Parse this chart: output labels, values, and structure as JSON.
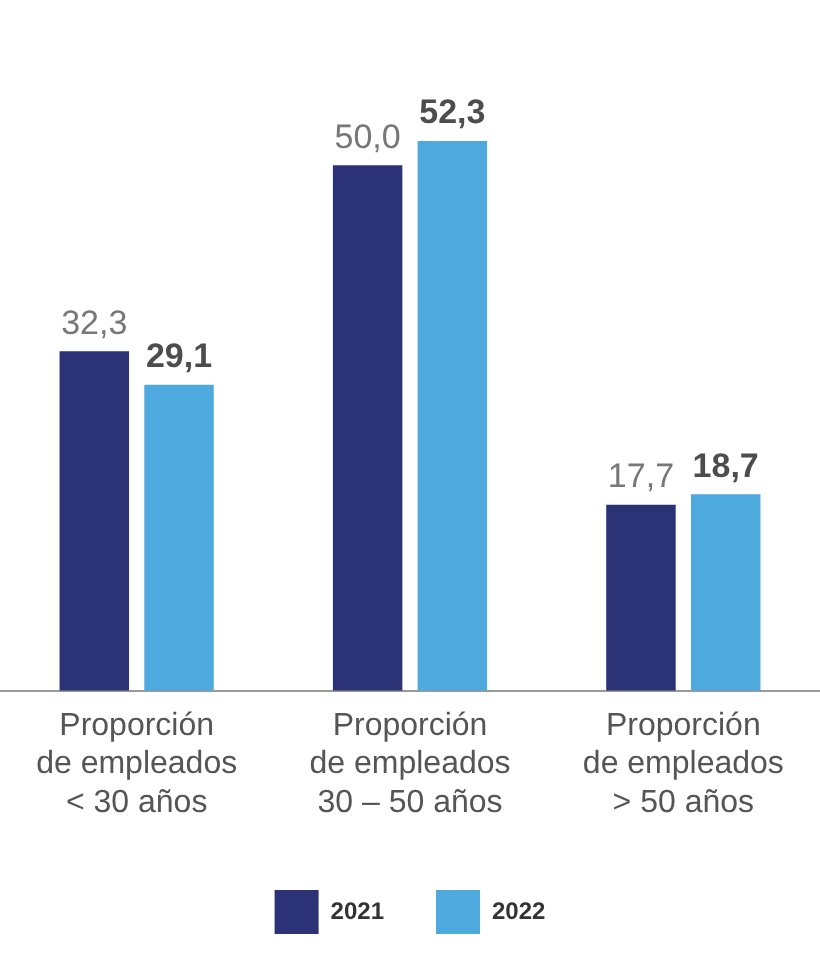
{
  "chart_data": {
    "type": "bar",
    "categories": [
      "Proporción de empleados < 30 años",
      "Proporción de empleados 30 – 50 años",
      "Proporción de empleados > 50 años"
    ],
    "series": [
      {
        "name": "2021",
        "color": "#2b3275",
        "values": [
          32.3,
          50.0,
          17.7
        ],
        "value_labels": [
          "32,3",
          "50,0",
          "17,7"
        ]
      },
      {
        "name": "2022",
        "color": "#4ea9df",
        "values": [
          29.1,
          52.3,
          18.7
        ],
        "value_labels": [
          "29,1",
          "52,3",
          "18,7"
        ]
      }
    ],
    "tick_labels": "x",
    "legend": "bottom"
  }
}
